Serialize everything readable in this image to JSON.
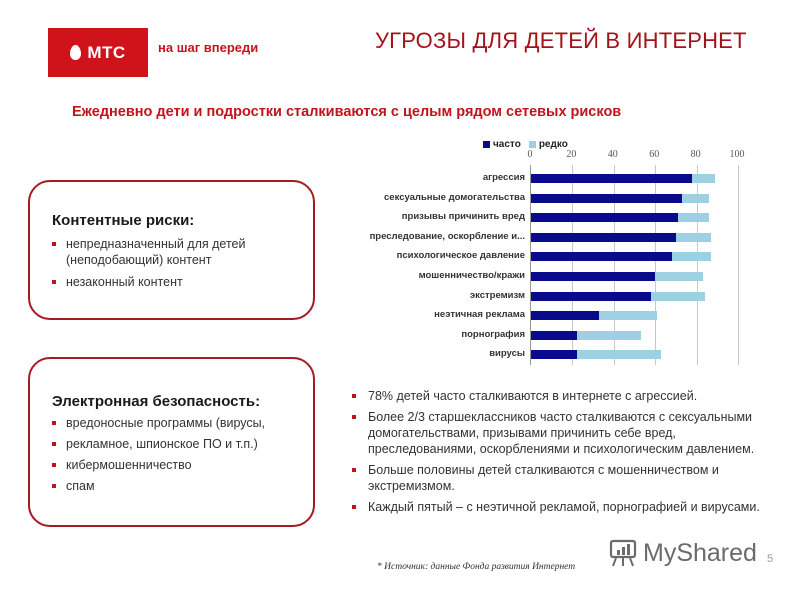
{
  "header": {
    "logo_text": "МТС",
    "tagline": "на шаг впереди",
    "title": "УГРОЗЫ ДЛЯ ДЕТЕЙ В ИНТЕРНЕТ",
    "subtitle": "Ежедневно дети и подростки сталкиваются с целым рядом сетевых рисков"
  },
  "boxes": [
    {
      "title": "Контентные риски:",
      "items": [
        "непредназначенный для детей (неподобающий) контент",
        "незаконный контент"
      ]
    },
    {
      "title": "Электронная безопасность:",
      "items": [
        "вредоносные программы (вирусы,",
        "рекламное, шпионское ПО и т.п.)",
        "кибермошенничество",
        "спам"
      ]
    }
  ],
  "facts": [
    "78% детей часто сталкиваются в интернете с агрессией.",
    "Более 2/3 старшеклассников часто сталкиваются с сексуальными домогательствами, призывами причинить себе вред, преследованиями, оскорблениями и психологическим давлением.",
    "Больше половины детей сталкиваются с мошенничеством и экстремизмом.",
    "Каждый пятый – с неэтичной рекламой, порнографией и вирусами."
  ],
  "source": "* Источник: данные Фонда развития Интернет",
  "watermark": "MyShared",
  "slide_number": "5",
  "colors": {
    "brand_red": "#d0121b",
    "title_red": "#a3131b",
    "border_red": "#a71a22",
    "series_often": "#0a0a8c",
    "series_rare": "#9dd0e3"
  },
  "chart_data": {
    "type": "bar",
    "orientation": "horizontal",
    "stacked": true,
    "title": "",
    "xlabel": "",
    "ylabel": "",
    "xlim": [
      0,
      100
    ],
    "x_ticks": [
      "0",
      "20",
      "40",
      "60",
      "80",
      "100"
    ],
    "grid": true,
    "legend_position": "top",
    "categories": [
      "агрессия",
      "сексуальные домогательства",
      "призывы причинить вред",
      "преследование, оскорбление и...",
      "психологическое давление",
      "мошенничество/кражи",
      "экстремизм",
      "неэтичная реклама",
      "порнография",
      "вирусы"
    ],
    "series": [
      {
        "name": "часто",
        "color": "#0a0a8c",
        "values": [
          78,
          73,
          71,
          70,
          68,
          60,
          58,
          33,
          22,
          22
        ]
      },
      {
        "name": "редко",
        "color": "#9dd0e3",
        "values": [
          11,
          13,
          15,
          17,
          19,
          23,
          26,
          28,
          31,
          41
        ]
      }
    ]
  }
}
